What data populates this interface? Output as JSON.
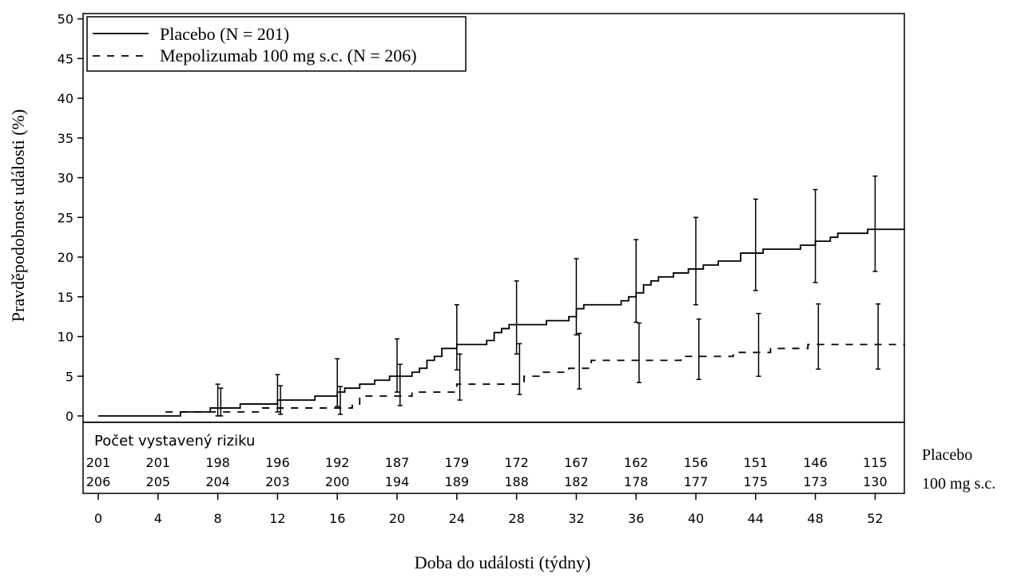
{
  "chart_data": {
    "type": "line",
    "title": "",
    "xlabel": "Doba do události  (týdny)",
    "ylabel": "Pravděpodobnost události  (%)",
    "xlim": [
      0,
      54
    ],
    "ylim": [
      0,
      50
    ],
    "x_ticks": [
      0,
      4,
      8,
      12,
      16,
      20,
      24,
      28,
      32,
      36,
      40,
      44,
      48,
      52
    ],
    "y_ticks": [
      0,
      5,
      10,
      15,
      20,
      25,
      30,
      35,
      40,
      45,
      50
    ],
    "legend_position": "top-left",
    "series": [
      {
        "name": "Placebo (N = 201)",
        "line_style": "solid",
        "color": "#000000",
        "steps": [
          [
            0,
            0
          ],
          [
            5.5,
            0.5
          ],
          [
            7.5,
            1.0
          ],
          [
            9.5,
            1.5
          ],
          [
            12,
            2.0
          ],
          [
            14.5,
            2.5
          ],
          [
            16,
            3.0
          ],
          [
            16.5,
            3.5
          ],
          [
            17.5,
            4.0
          ],
          [
            18.5,
            4.5
          ],
          [
            19.5,
            5.0
          ],
          [
            21,
            5.5
          ],
          [
            21.5,
            6.0
          ],
          [
            22,
            7.0
          ],
          [
            22.5,
            7.5
          ],
          [
            23,
            8.5
          ],
          [
            24,
            9.0
          ],
          [
            26,
            9.5
          ],
          [
            26.5,
            10.5
          ],
          [
            27,
            11.0
          ],
          [
            27.5,
            11.5
          ],
          [
            30,
            12.0
          ],
          [
            31.5,
            12.5
          ],
          [
            32,
            13.5
          ],
          [
            32.5,
            14.0
          ],
          [
            35,
            14.5
          ],
          [
            35.5,
            15.0
          ],
          [
            36,
            15.5
          ],
          [
            36.5,
            16.5
          ],
          [
            37,
            17.0
          ],
          [
            37.5,
            17.5
          ],
          [
            38.5,
            18.0
          ],
          [
            39.5,
            18.5
          ],
          [
            40.5,
            19.0
          ],
          [
            41.5,
            19.5
          ],
          [
            43,
            20.5
          ],
          [
            44.5,
            21.0
          ],
          [
            47,
            21.5
          ],
          [
            48,
            22.0
          ],
          [
            49,
            22.5
          ],
          [
            49.5,
            23.0
          ],
          [
            51.5,
            23.5
          ]
        ],
        "error_bars": [
          {
            "x": 8,
            "y": 0.5,
            "low": 0.0,
            "high": 4.0
          },
          {
            "x": 12,
            "y": 2.0,
            "low": 0.5,
            "high": 5.2
          },
          {
            "x": 16,
            "y": 3.0,
            "low": 1.2,
            "high": 7.2
          },
          {
            "x": 20,
            "y": 5.5,
            "low": 3.0,
            "high": 9.7
          },
          {
            "x": 24,
            "y": 9.0,
            "low": 5.8,
            "high": 14.0
          },
          {
            "x": 28,
            "y": 11.5,
            "low": 7.8,
            "high": 17.0
          },
          {
            "x": 32,
            "y": 14.0,
            "low": 10.2,
            "high": 19.8
          },
          {
            "x": 36,
            "y": 15.8,
            "low": 11.8,
            "high": 22.2
          },
          {
            "x": 40,
            "y": 18.8,
            "low": 14.0,
            "high": 25.0
          },
          {
            "x": 44,
            "y": 20.8,
            "low": 15.8,
            "high": 27.3
          },
          {
            "x": 48,
            "y": 22.0,
            "low": 16.8,
            "high": 28.5
          },
          {
            "x": 52,
            "y": 23.5,
            "low": 18.2,
            "high": 30.2
          }
        ]
      },
      {
        "name": "Mepolizumab 100 mg s.c. (N = 206)",
        "line_style": "dashed",
        "color": "#000000",
        "steps": [
          [
            4.5,
            0.5
          ],
          [
            11,
            1.0
          ],
          [
            17,
            1.5
          ],
          [
            17.5,
            2.5
          ],
          [
            21,
            3.0
          ],
          [
            24,
            4.0
          ],
          [
            28.5,
            5.0
          ],
          [
            29.5,
            5.5
          ],
          [
            31.5,
            6.0
          ],
          [
            33,
            7.0
          ],
          [
            39,
            7.5
          ],
          [
            42.5,
            8.0
          ],
          [
            45,
            8.5
          ],
          [
            47.5,
            9.0
          ]
        ],
        "error_bars": [
          {
            "x": 8.2,
            "y": 0.5,
            "low": 0.0,
            "high": 3.5
          },
          {
            "x": 12.2,
            "y": 1.0,
            "low": 0.2,
            "high": 3.8
          },
          {
            "x": 16.2,
            "y": 1.0,
            "low": 0.2,
            "high": 3.7
          },
          {
            "x": 20.2,
            "y": 3.0,
            "low": 1.3,
            "high": 6.5
          },
          {
            "x": 24.2,
            "y": 4.0,
            "low": 2.0,
            "high": 7.8
          },
          {
            "x": 28.2,
            "y": 5.0,
            "low": 2.7,
            "high": 9.1
          },
          {
            "x": 32.2,
            "y": 6.0,
            "low": 3.4,
            "high": 10.4
          },
          {
            "x": 36.2,
            "y": 7.0,
            "low": 4.2,
            "high": 11.7
          },
          {
            "x": 40.2,
            "y": 7.5,
            "low": 4.6,
            "high": 12.2
          },
          {
            "x": 44.2,
            "y": 8.0,
            "low": 5.0,
            "high": 12.9
          },
          {
            "x": 48.2,
            "y": 9.0,
            "low": 5.9,
            "high": 14.1
          },
          {
            "x": 52.2,
            "y": 9.0,
            "low": 5.9,
            "high": 14.1
          }
        ]
      }
    ],
    "risk_table": {
      "title": "Počet vystavený riziku",
      "rows": [
        {
          "label": "Placebo",
          "values": [
            201,
            201,
            198,
            196,
            192,
            187,
            179,
            172,
            167,
            162,
            156,
            151,
            146,
            115
          ]
        },
        {
          "label": "100 mg s.c.",
          "values": [
            206,
            205,
            204,
            203,
            200,
            194,
            189,
            188,
            182,
            178,
            177,
            175,
            173,
            130
          ]
        }
      ]
    }
  }
}
